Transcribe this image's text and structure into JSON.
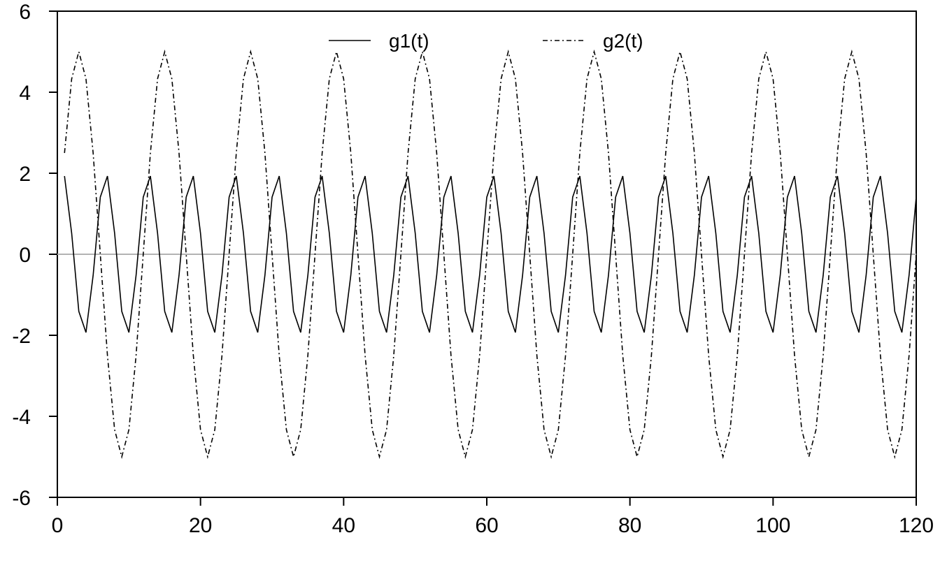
{
  "chart_data": {
    "type": "line",
    "title": "",
    "xlabel": "",
    "ylabel": "",
    "xlim": [
      0,
      120
    ],
    "ylim": [
      -6,
      6
    ],
    "x_ticks": [
      0,
      20,
      40,
      60,
      80,
      100,
      120
    ],
    "y_ticks": [
      -6,
      -4,
      -2,
      0,
      2,
      4,
      6
    ],
    "x_tick_labels": [
      "0",
      "20",
      "40",
      "60",
      "80",
      "100",
      "120"
    ],
    "y_tick_labels": [
      "-6",
      "-4",
      "-2",
      "0",
      "2",
      "4",
      "6"
    ],
    "reference_line_y": 0,
    "grid": false,
    "legend_position": "top",
    "series": [
      {
        "name": "g1(t)",
        "style": "solid",
        "color": "#000000",
        "x": [
          1,
          2,
          3,
          4,
          5,
          6,
          7,
          8,
          9,
          10,
          11,
          12,
          13,
          14,
          15,
          16,
          17,
          18,
          19,
          20,
          21,
          22,
          23,
          24,
          25,
          26,
          27,
          28,
          29,
          30,
          31,
          32,
          33,
          34,
          35,
          36,
          37,
          38,
          39,
          40,
          41,
          42,
          43,
          44,
          45,
          46,
          47,
          48,
          49,
          50,
          51,
          52,
          53,
          54,
          55,
          56,
          57,
          58,
          59,
          60,
          61,
          62,
          63,
          64,
          65,
          66,
          67,
          68,
          69,
          70,
          71,
          72,
          73,
          74,
          75,
          76,
          77,
          78,
          79,
          80,
          81,
          82,
          83,
          84,
          85,
          86,
          87,
          88,
          89,
          90,
          91,
          92,
          93,
          94,
          95,
          96,
          97,
          98,
          99,
          100,
          101,
          102,
          103,
          104,
          105,
          106,
          107,
          108,
          109,
          110,
          111,
          112,
          113,
          114,
          115,
          116,
          117,
          118,
          119,
          120
        ],
        "y": [
          1.93,
          0.52,
          -1.41,
          -1.93,
          -0.52,
          1.41,
          1.93,
          0.52,
          -1.41,
          -1.93,
          -0.52,
          1.41,
          1.93,
          0.52,
          -1.41,
          -1.93,
          -0.52,
          1.41,
          1.93,
          0.52,
          -1.41,
          -1.93,
          -0.52,
          1.41,
          1.93,
          0.52,
          -1.41,
          -1.93,
          -0.52,
          1.41,
          1.93,
          0.52,
          -1.41,
          -1.93,
          -0.52,
          1.41,
          1.93,
          0.52,
          -1.41,
          -1.93,
          -0.52,
          1.41,
          1.93,
          0.52,
          -1.41,
          -1.93,
          -0.52,
          1.41,
          1.93,
          0.52,
          -1.41,
          -1.93,
          -0.52,
          1.41,
          1.93,
          0.52,
          -1.41,
          -1.93,
          -0.52,
          1.41,
          1.93,
          0.52,
          -1.41,
          -1.93,
          -0.52,
          1.41,
          1.93,
          0.52,
          -1.41,
          -1.93,
          -0.52,
          1.41,
          1.93,
          0.52,
          -1.41,
          -1.93,
          -0.52,
          1.41,
          1.93,
          0.52,
          -1.41,
          -1.93,
          -0.52,
          1.41,
          1.93,
          0.52,
          -1.41,
          -1.93,
          -0.52,
          1.41,
          1.93,
          0.52,
          -1.41,
          -1.93,
          -0.52,
          1.41,
          1.93,
          0.52,
          -1.41,
          -1.93,
          -0.52,
          1.41,
          1.93,
          0.52,
          -1.41,
          -1.93,
          -0.52,
          1.41,
          1.93,
          0.52,
          -1.41,
          -1.93,
          -0.52,
          1.41,
          1.93,
          0.52,
          -1.41,
          -1.93,
          -0.52,
          1.41
        ]
      },
      {
        "name": "g2(t)",
        "style": "dashdot",
        "color": "#000000",
        "x": [
          1,
          2,
          3,
          4,
          5,
          6,
          7,
          8,
          9,
          10,
          11,
          12,
          13,
          14,
          15,
          16,
          17,
          18,
          19,
          20,
          21,
          22,
          23,
          24,
          25,
          26,
          27,
          28,
          29,
          30,
          31,
          32,
          33,
          34,
          35,
          36,
          37,
          38,
          39,
          40,
          41,
          42,
          43,
          44,
          45,
          46,
          47,
          48,
          49,
          50,
          51,
          52,
          53,
          54,
          55,
          56,
          57,
          58,
          59,
          60,
          61,
          62,
          63,
          64,
          65,
          66,
          67,
          68,
          69,
          70,
          71,
          72,
          73,
          74,
          75,
          76,
          77,
          78,
          79,
          80,
          81,
          82,
          83,
          84,
          85,
          86,
          87,
          88,
          89,
          90,
          91,
          92,
          93,
          94,
          95,
          96,
          97,
          98,
          99,
          100,
          101,
          102,
          103,
          104,
          105,
          106,
          107,
          108,
          109,
          110,
          111,
          112,
          113,
          114,
          115,
          116,
          117,
          118,
          119,
          120
        ],
        "y": [
          2.5,
          4.33,
          5.0,
          4.33,
          2.5,
          0.0,
          -2.5,
          -4.33,
          -5.0,
          -4.33,
          -2.5,
          0.0,
          2.5,
          4.33,
          5.0,
          4.33,
          2.5,
          0.0,
          -2.5,
          -4.33,
          -5.0,
          -4.33,
          -2.5,
          0.0,
          2.5,
          4.33,
          5.0,
          4.33,
          2.5,
          0.0,
          -2.5,
          -4.33,
          -5.0,
          -4.33,
          -2.5,
          0.0,
          2.5,
          4.33,
          5.0,
          4.33,
          2.5,
          0.0,
          -2.5,
          -4.33,
          -5.0,
          -4.33,
          -2.5,
          0.0,
          2.5,
          4.33,
          5.0,
          4.33,
          2.5,
          0.0,
          -2.5,
          -4.33,
          -5.0,
          -4.33,
          -2.5,
          0.0,
          2.5,
          4.33,
          5.0,
          4.33,
          2.5,
          0.0,
          -2.5,
          -4.33,
          -5.0,
          -4.33,
          -2.5,
          0.0,
          2.5,
          4.33,
          5.0,
          4.33,
          2.5,
          0.0,
          -2.5,
          -4.33,
          -5.0,
          -4.33,
          -2.5,
          0.0,
          2.5,
          4.33,
          5.0,
          4.33,
          2.5,
          0.0,
          -2.5,
          -4.33,
          -5.0,
          -4.33,
          -2.5,
          0.0,
          2.5,
          4.33,
          5.0,
          4.33,
          2.5,
          0.0,
          -2.5,
          -4.33,
          -5.0,
          -4.33,
          -2.5,
          0.0,
          2.5,
          4.33,
          5.0,
          4.33,
          2.5,
          0.0,
          -2.5,
          -4.33,
          -5.0,
          -4.33,
          -2.5,
          0.0
        ]
      }
    ]
  }
}
